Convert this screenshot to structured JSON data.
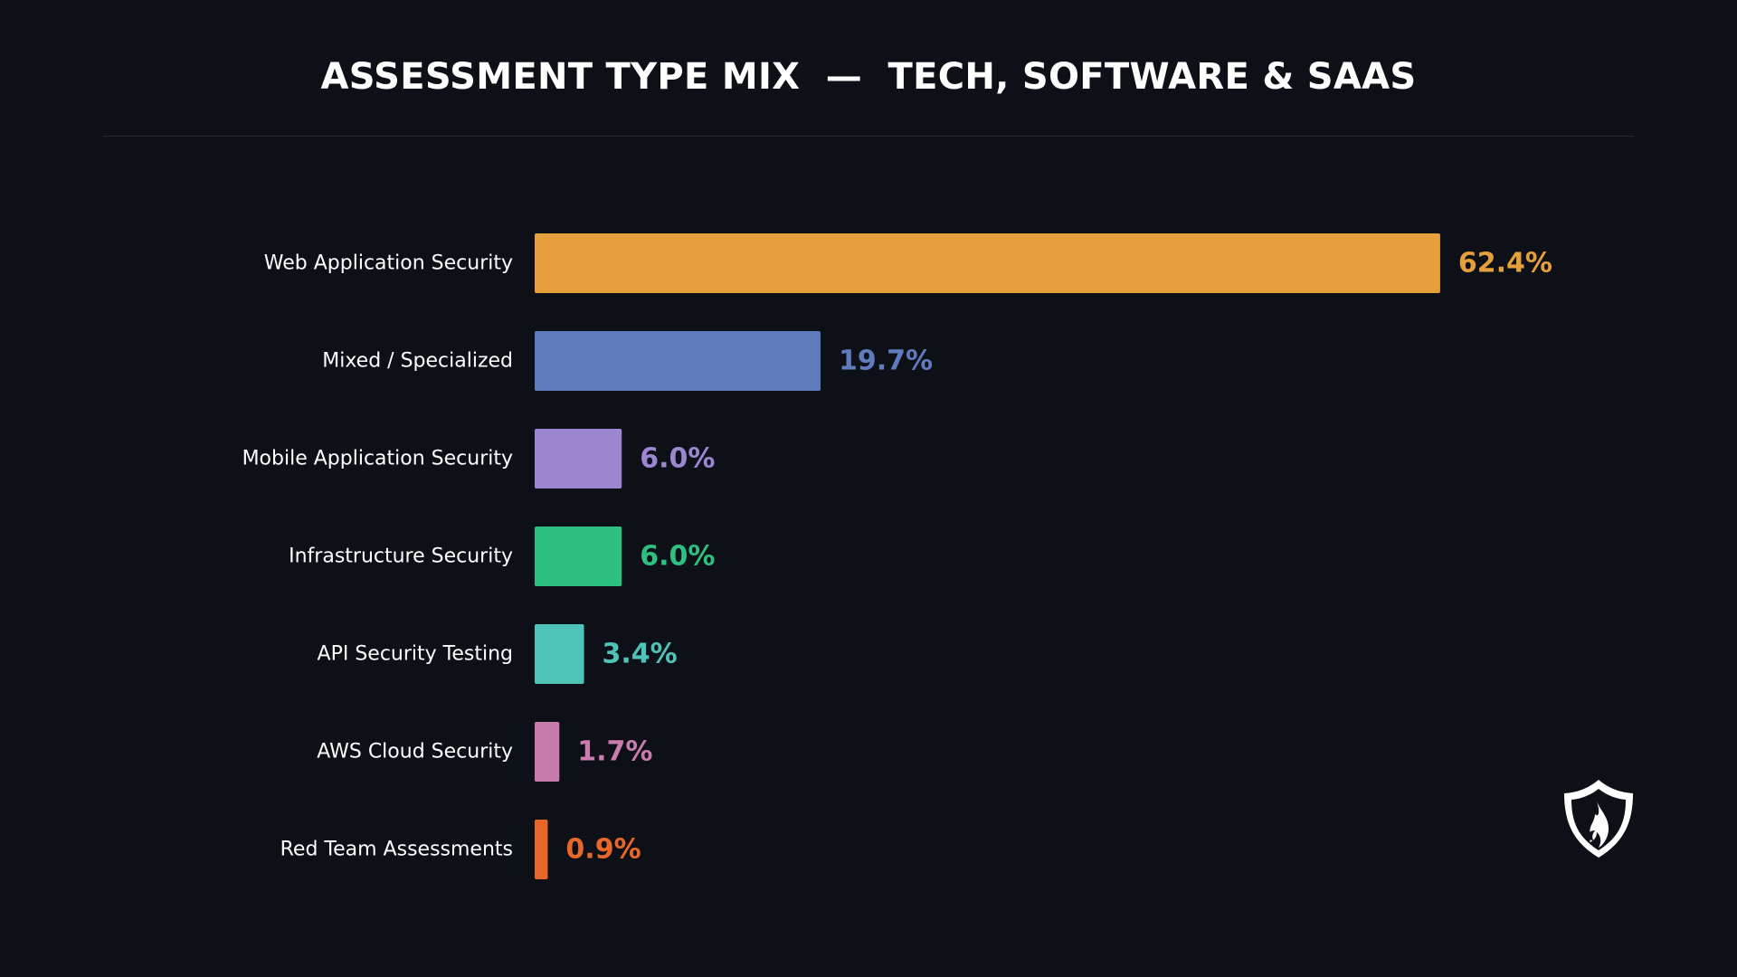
{
  "title": "ASSESSMENT TYPE MIX  —  TECH, SOFTWARE & SAAS",
  "chart_data": {
    "type": "bar",
    "orientation": "horizontal",
    "title": "ASSESSMENT TYPE MIX  —  TECH, SOFTWARE & SAAS",
    "xlabel": "",
    "ylabel": "",
    "xlim": [
      0,
      70
    ],
    "grid": false,
    "legend": "none",
    "categories": [
      "Web Application Security",
      "Mixed / Specialized",
      "Mobile Application Security",
      "Infrastructure Security",
      "API Security Testing",
      "AWS Cloud Security",
      "Red Team Assessments"
    ],
    "values": [
      62.4,
      19.7,
      6.0,
      6.0,
      3.4,
      1.7,
      0.9
    ],
    "value_labels": [
      "62.4%",
      "19.7%",
      "6.0%",
      "6.0%",
      "3.4%",
      "1.7%",
      "0.9%"
    ],
    "colors": [
      "#e5a03c",
      "#5f7bbc",
      "#9b86cf",
      "#2ec080",
      "#4fc3b8",
      "#c97cad",
      "#e8662a"
    ]
  },
  "logo": {
    "icon": "flame-shield-icon"
  },
  "colors": {
    "background": "#0d1017",
    "text": "#ffffff",
    "divider": "#272b33"
  }
}
